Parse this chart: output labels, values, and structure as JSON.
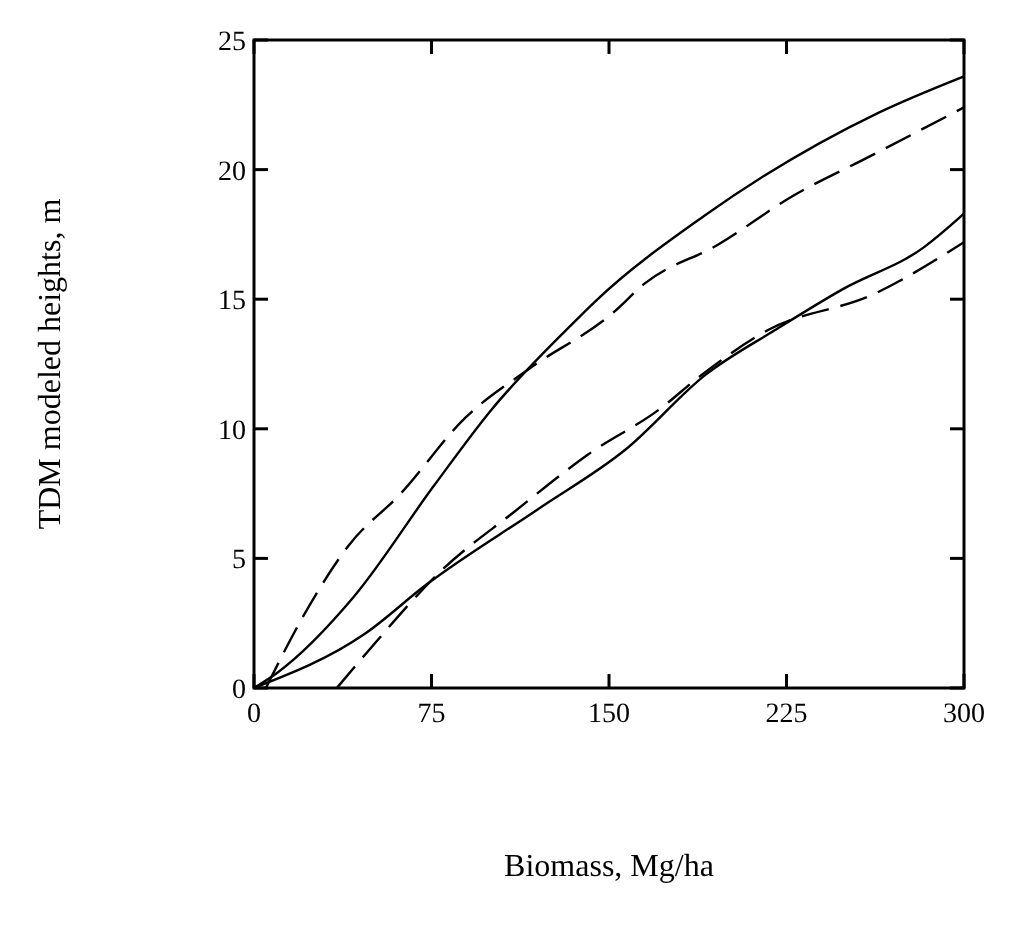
{
  "chart_data": {
    "type": "line",
    "xlabel": "Biomass, Mg/ha",
    "ylabel": "TDM modeled heights, m",
    "xlim": [
      0,
      300
    ],
    "ylim": [
      0,
      25
    ],
    "xticks": [
      0,
      75,
      150,
      225,
      300
    ],
    "yticks": [
      0,
      5,
      10,
      15,
      20,
      25
    ],
    "marker": "none",
    "series": [
      {
        "color": "#000000",
        "line_style": "solid",
        "x": [
          0,
          10,
          42,
          76,
          100,
          134,
          144,
          190,
          264,
          300
        ],
        "values": [
          0,
          0.6,
          3.5,
          7.8,
          10.7,
          14.0,
          14.9,
          18.2,
          22.2,
          23.6
        ]
      },
      {
        "color": "#000000",
        "line_style": "dashed",
        "x": [
          5,
          21,
          40,
          62,
          89,
          116,
          152,
          165,
          196,
          228,
          260,
          300
        ],
        "values": [
          0,
          2.8,
          5.5,
          7.5,
          10.4,
          12.3,
          14.5,
          15.6,
          17.1,
          19.0,
          20.5,
          22.4
        ]
      },
      {
        "color": "#000000",
        "line_style": "solid",
        "x": [
          0,
          47,
          73,
          120,
          157,
          191,
          220,
          249,
          283,
          300
        ],
        "values": [
          0,
          2.1,
          4.0,
          6.9,
          9.2,
          12.1,
          13.8,
          15.4,
          17.0,
          18.3
        ]
      },
      {
        "color": "#000000",
        "line_style": "dashed",
        "x": [
          35,
          48,
          80,
          110,
          141,
          172,
          188,
          217,
          262,
          300
        ],
        "values": [
          0,
          1.4,
          4.6,
          6.8,
          9.0,
          10.8,
          12.0,
          13.8,
          15.2,
          17.2
        ]
      }
    ]
  }
}
